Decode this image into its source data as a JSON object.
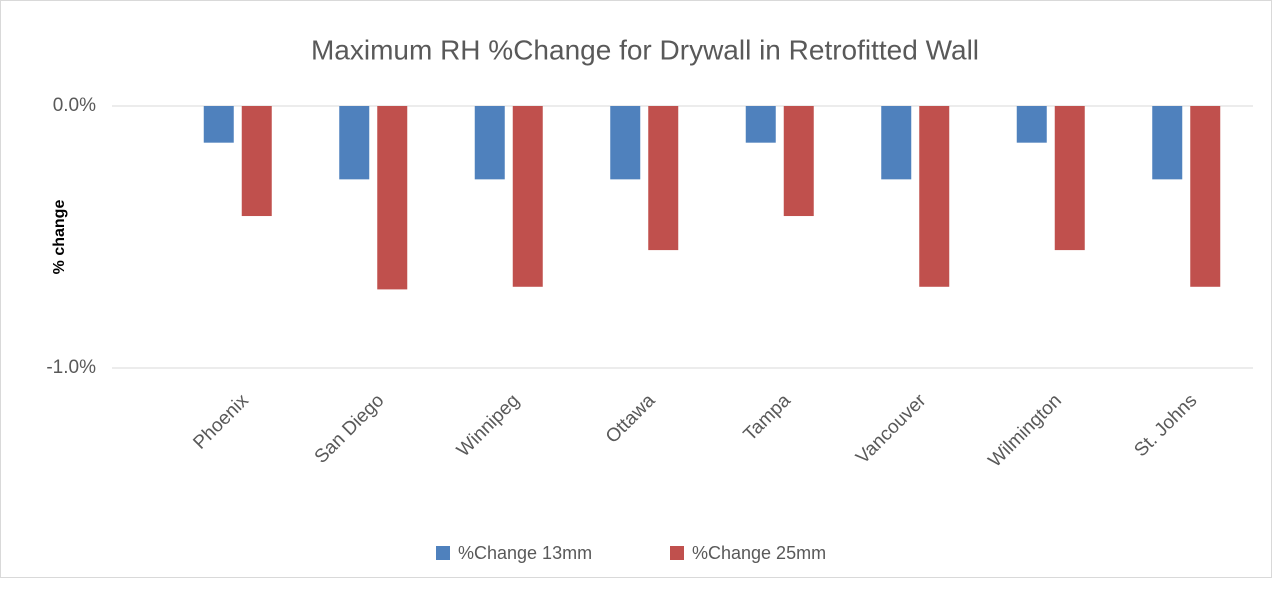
{
  "chart_data": {
    "type": "bar",
    "title": "Maximum RH %Change for Drywall in Retrofitted Wall",
    "y_label": "% change",
    "categories": [
      "Phoenix",
      "San Diego",
      "Winnipeg",
      "Ottawa",
      "Tampa",
      "Vancouver",
      "Wilmington",
      "St. Johns"
    ],
    "series": [
      {
        "name": "%Change 13mm",
        "color": "#4f81bd",
        "values": [
          -0.14,
          -0.28,
          -0.28,
          -0.28,
          -0.14,
          -0.28,
          -0.14,
          -0.28
        ]
      },
      {
        "name": "%Change 25mm",
        "color": "#c0504d",
        "values": [
          -0.42,
          -0.7,
          -0.69,
          -0.55,
          -0.42,
          -0.69,
          -0.55,
          -0.69
        ]
      }
    ],
    "ylim": [
      -1,
      0
    ],
    "yticks": [
      {
        "value": -1,
        "label": "-1.0%"
      },
      {
        "value": 0,
        "label": "0.0%"
      }
    ],
    "grid": true,
    "legend": "bottom"
  }
}
